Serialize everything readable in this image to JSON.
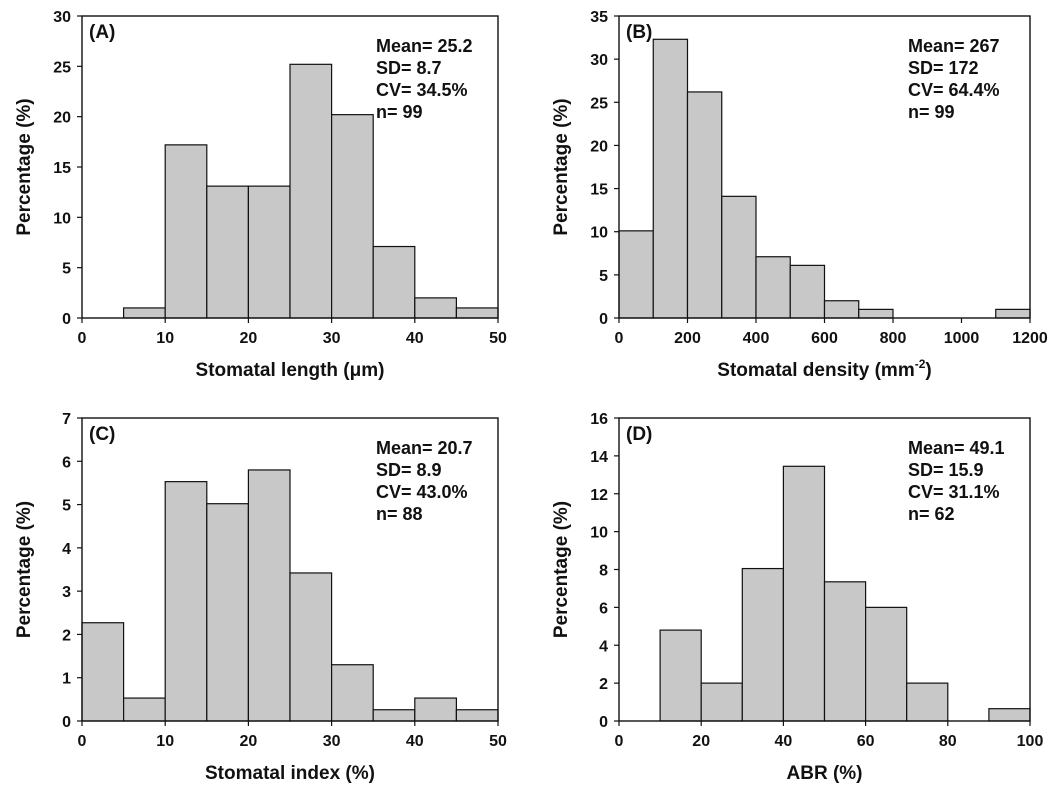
{
  "chart_data": [
    {
      "type": "bar",
      "panel_label": "(A)",
      "xlabel": "Stomatal length (μm)",
      "ylabel": "Percentage (%)",
      "xlim": [
        0,
        50
      ],
      "ylim": [
        0,
        30
      ],
      "xticks": [
        0,
        10,
        20,
        30,
        40,
        50
      ],
      "yticks": [
        0,
        5,
        10,
        15,
        20,
        25,
        30
      ],
      "bin_edges": [
        0,
        5,
        10,
        15,
        20,
        25,
        30,
        35,
        40,
        45,
        50
      ],
      "values": [
        0,
        1,
        17.2,
        13.1,
        13.1,
        25.2,
        20.2,
        7.1,
        2.0,
        1.0
      ],
      "stats": [
        "Mean= 25.2",
        "SD= 8.7",
        "CV= 34.5%",
        "n= 99"
      ]
    },
    {
      "type": "bar",
      "panel_label": "(B)",
      "xlabel": "Stomatal density (mm",
      "xlabel_superscript": "-2",
      "xlabel_suffix": ")",
      "ylabel": "Percentage (%)",
      "xlim": [
        0,
        1200
      ],
      "ylim": [
        0,
        35
      ],
      "xticks": [
        0,
        200,
        400,
        600,
        800,
        1000,
        1200
      ],
      "yticks": [
        0,
        5,
        10,
        15,
        20,
        25,
        30,
        35
      ],
      "bin_edges": [
        0,
        100,
        200,
        300,
        400,
        500,
        600,
        700,
        800,
        900,
        1000,
        1100,
        1200
      ],
      "values": [
        10.1,
        32.3,
        26.2,
        14.1,
        7.1,
        6.1,
        2.0,
        1.0,
        0,
        0,
        0,
        1.0
      ],
      "stats": [
        "Mean= 267",
        "SD= 172",
        "CV= 64.4%",
        "n= 99"
      ]
    },
    {
      "type": "bar",
      "panel_label": "(C)",
      "xlabel": "Stomatal index (%)",
      "ylabel": "Percentage (%)",
      "xlim": [
        0,
        50
      ],
      "ylim": [
        0,
        7
      ],
      "xticks": [
        0,
        10,
        20,
        30,
        40,
        50
      ],
      "yticks": [
        0,
        1,
        2,
        3,
        4,
        5,
        6,
        7
      ],
      "bin_edges": [
        0,
        5,
        10,
        15,
        20,
        25,
        30,
        35,
        40,
        45,
        50
      ],
      "values": [
        2.27,
        0.53,
        5.53,
        5.02,
        5.8,
        3.42,
        1.3,
        0.26,
        0.53,
        0.26
      ],
      "stats": [
        "Mean= 20.7",
        "SD= 8.9",
        "CV= 43.0%",
        "n= 88"
      ]
    },
    {
      "type": "bar",
      "panel_label": "(D)",
      "xlabel": "ABR (%)",
      "ylabel": "Percentage (%)",
      "xlim": [
        0,
        100
      ],
      "ylim": [
        0,
        16
      ],
      "xticks": [
        0,
        20,
        40,
        60,
        80,
        100
      ],
      "yticks": [
        0,
        2,
        4,
        6,
        8,
        10,
        12,
        14,
        16
      ],
      "bin_edges": [
        0,
        10,
        20,
        30,
        40,
        50,
        60,
        70,
        80,
        90,
        100
      ],
      "values": [
        0,
        4.8,
        2.0,
        8.05,
        13.45,
        7.35,
        6.0,
        2.0,
        0,
        0.65
      ],
      "stats": [
        "Mean= 49.1",
        "SD= 15.9",
        "CV= 31.1%",
        "n= 62"
      ]
    }
  ]
}
